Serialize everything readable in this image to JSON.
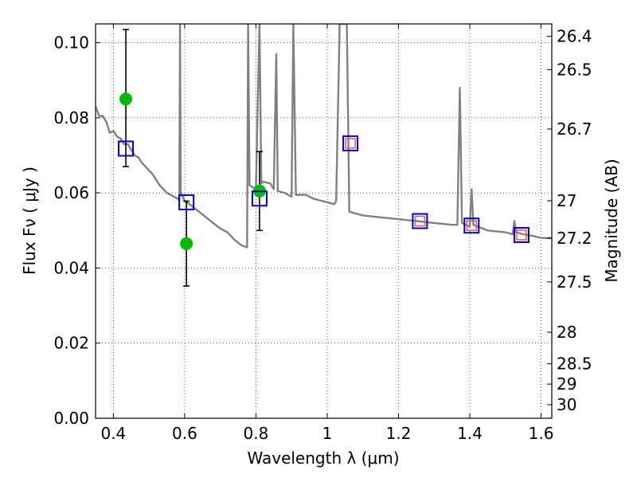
{
  "chart_data": {
    "type": "scatter",
    "xlabel": "Wavelength  λ (μm)",
    "ylabel": "Flux  Fν  ( μJy )",
    "ylabel_right": "Magnitude (AB)",
    "xlim": [
      0.35,
      1.63
    ],
    "ylim": [
      0.0,
      0.105
    ],
    "grid": true,
    "x_ticks": [
      0.4,
      0.6,
      0.8,
      1.0,
      1.2,
      1.4,
      1.6
    ],
    "x_tick_labels": [
      "0.4",
      "0.6",
      "0.8",
      "1",
      "1.2",
      "1.4",
      "1.6"
    ],
    "y_ticks": [
      0.0,
      0.02,
      0.04,
      0.06,
      0.08,
      0.1
    ],
    "y_tick_labels": [
      "0.00",
      "0.02",
      "0.04",
      "0.06",
      "0.08",
      "0.10"
    ],
    "right_ticks": [
      {
        "flux": 0.1017,
        "label": "26.4"
      },
      {
        "flux": 0.0928,
        "label": "26.5"
      },
      {
        "flux": 0.077,
        "label": "26.7"
      },
      {
        "flux": 0.0579,
        "label": "27"
      },
      {
        "flux": 0.0479,
        "label": "27.2"
      },
      {
        "flux": 0.0363,
        "label": "27.5"
      },
      {
        "flux": 0.0229,
        "label": "28"
      },
      {
        "flux": 0.0145,
        "label": "28.5"
      },
      {
        "flux": 0.0091,
        "label": "29"
      },
      {
        "flux": 0.0036,
        "label": "30"
      }
    ],
    "series": [
      {
        "kind": "line",
        "color": "#808080",
        "points": [
          [
            0.35,
            0.083
          ],
          [
            0.36,
            0.0805
          ],
          [
            0.37,
            0.0805
          ],
          [
            0.38,
            0.079
          ],
          [
            0.39,
            0.076
          ],
          [
            0.4,
            0.0765
          ],
          [
            0.41,
            0.075
          ],
          [
            0.42,
            0.0745
          ],
          [
            0.43,
            0.073
          ],
          [
            0.44,
            0.073
          ],
          [
            0.45,
            0.0715
          ],
          [
            0.46,
            0.07
          ],
          [
            0.47,
            0.0695
          ],
          [
            0.48,
            0.068
          ],
          [
            0.49,
            0.067
          ],
          [
            0.5,
            0.066
          ],
          [
            0.51,
            0.065
          ],
          [
            0.52,
            0.0635
          ],
          [
            0.53,
            0.062
          ],
          [
            0.54,
            0.061
          ],
          [
            0.55,
            0.06
          ],
          [
            0.56,
            0.0595
          ],
          [
            0.57,
            0.059
          ],
          [
            0.58,
            0.0585
          ],
          [
            0.585,
            0.058
          ],
          [
            0.587,
            0.105
          ],
          [
            0.589,
            0.06
          ],
          [
            0.6,
            0.058
          ],
          [
            0.62,
            0.0565
          ],
          [
            0.64,
            0.055
          ],
          [
            0.66,
            0.0535
          ],
          [
            0.68,
            0.052
          ],
          [
            0.7,
            0.0505
          ],
          [
            0.72,
            0.0495
          ],
          [
            0.74,
            0.0475
          ],
          [
            0.76,
            0.046
          ],
          [
            0.775,
            0.0455
          ],
          [
            0.778,
            0.105
          ],
          [
            0.782,
            0.062
          ],
          [
            0.8,
            0.061
          ],
          [
            0.81,
            0.105
          ],
          [
            0.815,
            0.0625
          ],
          [
            0.82,
            0.063
          ],
          [
            0.84,
            0.0625
          ],
          [
            0.85,
            0.061
          ],
          [
            0.857,
            0.097
          ],
          [
            0.861,
            0.0605
          ],
          [
            0.88,
            0.06
          ],
          [
            0.9,
            0.059
          ],
          [
            0.905,
            0.105
          ],
          [
            0.912,
            0.0595
          ],
          [
            0.94,
            0.0595
          ],
          [
            0.96,
            0.0585
          ],
          [
            0.98,
            0.058
          ],
          [
            1.0,
            0.0575
          ],
          [
            1.02,
            0.057
          ],
          [
            1.025,
            0.058
          ],
          [
            1.035,
            0.105
          ],
          [
            1.055,
            0.105
          ],
          [
            1.062,
            0.055
          ],
          [
            1.08,
            0.0545
          ],
          [
            1.1,
            0.054
          ],
          [
            1.15,
            0.0535
          ],
          [
            1.2,
            0.053
          ],
          [
            1.25,
            0.0525
          ],
          [
            1.3,
            0.052
          ],
          [
            1.35,
            0.0515
          ],
          [
            1.365,
            0.0515
          ],
          [
            1.372,
            0.088
          ],
          [
            1.378,
            0.052
          ],
          [
            1.4,
            0.051
          ],
          [
            1.405,
            0.061
          ],
          [
            1.41,
            0.0515
          ],
          [
            1.45,
            0.05
          ],
          [
            1.5,
            0.0495
          ],
          [
            1.52,
            0.049
          ],
          [
            1.525,
            0.0525
          ],
          [
            1.53,
            0.0495
          ],
          [
            1.55,
            0.049
          ],
          [
            1.58,
            0.0485
          ],
          [
            1.6,
            0.048
          ],
          [
            1.63,
            0.048
          ]
        ]
      },
      {
        "kind": "points",
        "marker": "circle",
        "color": "#00bb00",
        "points": [
          {
            "x": 0.435,
            "y": 0.085,
            "err_low": 0.067,
            "err_high": 0.1035
          },
          {
            "x": 0.605,
            "y": 0.0465,
            "err_low": 0.0352,
            "err_high": 0.0578
          },
          {
            "x": 0.81,
            "y": 0.0605,
            "err_low": 0.05,
            "err_high": 0.071
          }
        ]
      },
      {
        "kind": "points",
        "marker": "square",
        "color": "#0000cc",
        "points": [
          {
            "x": 0.435,
            "y": 0.0718
          },
          {
            "x": 0.605,
            "y": 0.0575
          },
          {
            "x": 0.81,
            "y": 0.0585
          },
          {
            "x": 1.065,
            "y": 0.0732
          },
          {
            "x": 1.26,
            "y": 0.0525
          },
          {
            "x": 1.405,
            "y": 0.0513
          },
          {
            "x": 1.545,
            "y": 0.0488
          }
        ]
      },
      {
        "kind": "points",
        "marker": "square",
        "color": "#e06060",
        "points": [
          {
            "x": 1.065,
            "y": 0.0732
          },
          {
            "x": 1.26,
            "y": 0.0525
          },
          {
            "x": 1.405,
            "y": 0.0513
          },
          {
            "x": 1.545,
            "y": 0.0488
          }
        ]
      }
    ]
  }
}
